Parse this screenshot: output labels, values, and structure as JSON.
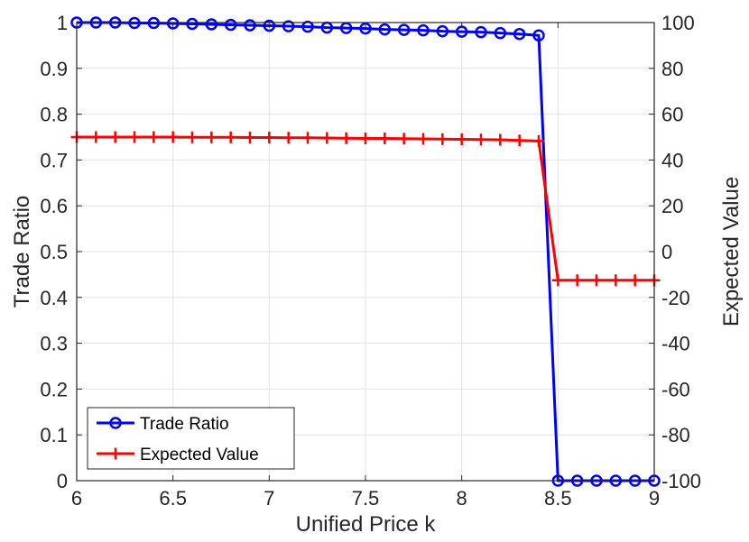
{
  "chart_data": {
    "type": "line",
    "title": "",
    "xlabel": "Unified Price k",
    "ylabel_left": "Trade Ratio",
    "ylabel_right": "Expected Value",
    "xlim": [
      6,
      9
    ],
    "ylim_left": [
      0,
      1
    ],
    "ylim_right": [
      -100,
      100
    ],
    "x_ticks": [
      "6",
      "6.5",
      "7",
      "7.5",
      "8",
      "8.5",
      "9"
    ],
    "y_left_ticks": [
      "0",
      "0.1",
      "0.2",
      "0.3",
      "0.4",
      "0.5",
      "0.6",
      "0.7",
      "0.8",
      "0.9",
      "1"
    ],
    "y_right_ticks": [
      "-100",
      "-80",
      "-60",
      "-40",
      "-20",
      "0",
      "20",
      "40",
      "60",
      "80",
      "100"
    ],
    "grid": true,
    "legend_position": "bottom-left",
    "x": [
      6.0,
      6.1,
      6.2,
      6.3,
      6.4,
      6.5,
      6.6,
      6.7,
      6.8,
      6.9,
      7.0,
      7.1,
      7.2,
      7.3,
      7.4,
      7.5,
      7.6,
      7.7,
      7.8,
      7.9,
      8.0,
      8.1,
      8.2,
      8.3,
      8.4,
      8.5,
      8.6,
      8.7,
      8.8,
      8.9,
      9.0
    ],
    "series": [
      {
        "name": "Trade Ratio",
        "axis": "left",
        "color": "#0000ff",
        "marker": "circle",
        "values": [
          1.0,
          1.0,
          1.0,
          0.999,
          0.999,
          0.998,
          0.997,
          0.996,
          0.995,
          0.994,
          0.993,
          0.992,
          0.991,
          0.989,
          0.988,
          0.987,
          0.985,
          0.984,
          0.983,
          0.981,
          0.98,
          0.979,
          0.977,
          0.975,
          0.972,
          0.0,
          0.0,
          0.0,
          0.0,
          0.0,
          0.0
        ]
      },
      {
        "name": "Expected Value",
        "axis": "right",
        "color": "#ff0000",
        "marker": "plus",
        "values": [
          50.0,
          50.0,
          50.0,
          50.0,
          50.0,
          50.0,
          49.9,
          49.9,
          49.9,
          49.8,
          49.8,
          49.7,
          49.7,
          49.6,
          49.5,
          49.4,
          49.4,
          49.3,
          49.2,
          49.1,
          49.0,
          48.9,
          48.8,
          48.5,
          48.3,
          -12.5,
          -12.5,
          -12.5,
          -12.5,
          -12.5,
          -12.5
        ]
      }
    ]
  }
}
